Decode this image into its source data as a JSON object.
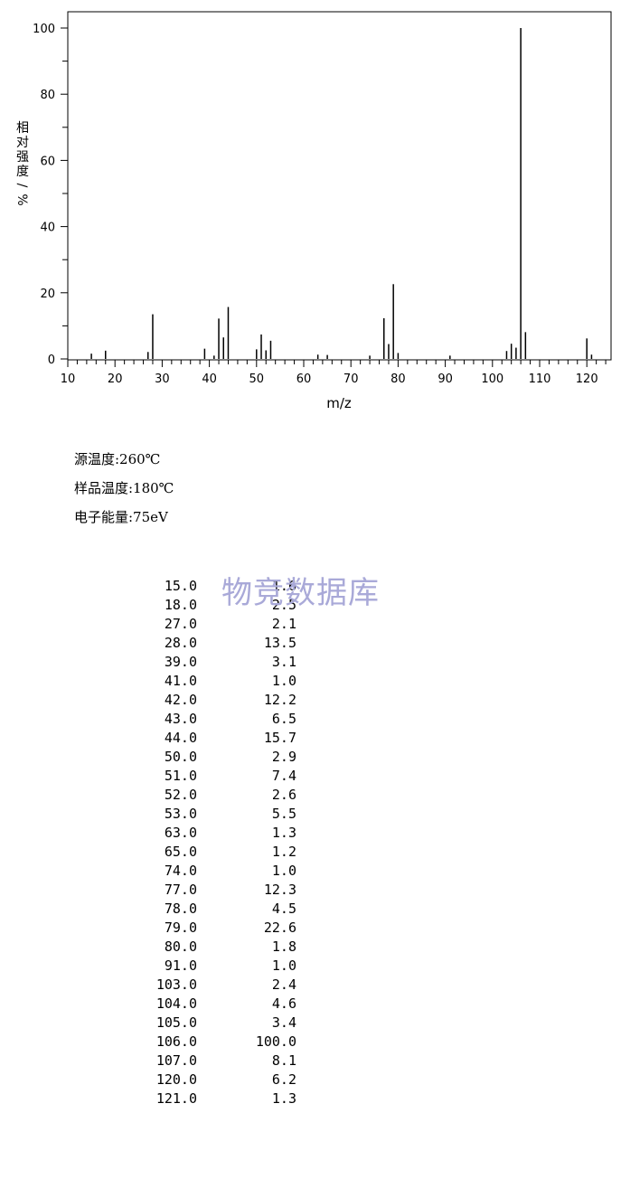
{
  "chart_data": {
    "type": "bar",
    "xlabel": "m/z",
    "ylabel_chars": [
      "相",
      "对",
      "强",
      "度",
      "/",
      "%"
    ],
    "xlim": [
      10,
      125
    ],
    "ylim": [
      0,
      100
    ],
    "xticks": [
      "10",
      "20",
      "30",
      "40",
      "50",
      "60",
      "70",
      "80",
      "90",
      "100",
      "110",
      "120"
    ],
    "yticks": [
      "0",
      "20",
      "40",
      "60",
      "80",
      "100"
    ],
    "peaks_x": [
      15,
      18,
      27,
      28,
      39,
      41,
      42,
      43,
      44,
      50,
      51,
      52,
      53,
      63,
      65,
      74,
      77,
      78,
      79,
      80,
      91,
      103,
      104,
      105,
      106,
      107,
      120,
      121
    ],
    "peaks_y": [
      1.6,
      2.5,
      2.1,
      13.5,
      3.1,
      1.0,
      12.2,
      6.5,
      15.7,
      2.9,
      7.4,
      2.6,
      5.5,
      1.3,
      1.2,
      1.0,
      12.3,
      4.5,
      22.6,
      1.8,
      1.0,
      2.4,
      4.6,
      3.4,
      100.0,
      8.1,
      6.2,
      1.3
    ]
  },
  "conditions": {
    "source_temp": "源温度:260℃",
    "sample_temp": "样品温度:180℃",
    "electron_energy": "电子能量:75eV"
  },
  "watermark": "物竞数据库",
  "peak_table": [
    {
      "mz": "15.0",
      "abundance": "1.6"
    },
    {
      "mz": "18.0",
      "abundance": "2.5"
    },
    {
      "mz": "27.0",
      "abundance": "2.1"
    },
    {
      "mz": "28.0",
      "abundance": "13.5"
    },
    {
      "mz": "39.0",
      "abundance": "3.1"
    },
    {
      "mz": "41.0",
      "abundance": "1.0"
    },
    {
      "mz": "42.0",
      "abundance": "12.2"
    },
    {
      "mz": "43.0",
      "abundance": "6.5"
    },
    {
      "mz": "44.0",
      "abundance": "15.7"
    },
    {
      "mz": "50.0",
      "abundance": "2.9"
    },
    {
      "mz": "51.0",
      "abundance": "7.4"
    },
    {
      "mz": "52.0",
      "abundance": "2.6"
    },
    {
      "mz": "53.0",
      "abundance": "5.5"
    },
    {
      "mz": "63.0",
      "abundance": "1.3"
    },
    {
      "mz": "65.0",
      "abundance": "1.2"
    },
    {
      "mz": "74.0",
      "abundance": "1.0"
    },
    {
      "mz": "77.0",
      "abundance": "12.3"
    },
    {
      "mz": "78.0",
      "abundance": "4.5"
    },
    {
      "mz": "79.0",
      "abundance": "22.6"
    },
    {
      "mz": "80.0",
      "abundance": "1.8"
    },
    {
      "mz": "91.0",
      "abundance": "1.0"
    },
    {
      "mz": "103.0",
      "abundance": "2.4"
    },
    {
      "mz": "104.0",
      "abundance": "4.6"
    },
    {
      "mz": "105.0",
      "abundance": "3.4"
    },
    {
      "mz": "106.0",
      "abundance": "100.0"
    },
    {
      "mz": "107.0",
      "abundance": "8.1"
    },
    {
      "mz": "120.0",
      "abundance": "6.2"
    },
    {
      "mz": "121.0",
      "abundance": "1.3"
    }
  ]
}
